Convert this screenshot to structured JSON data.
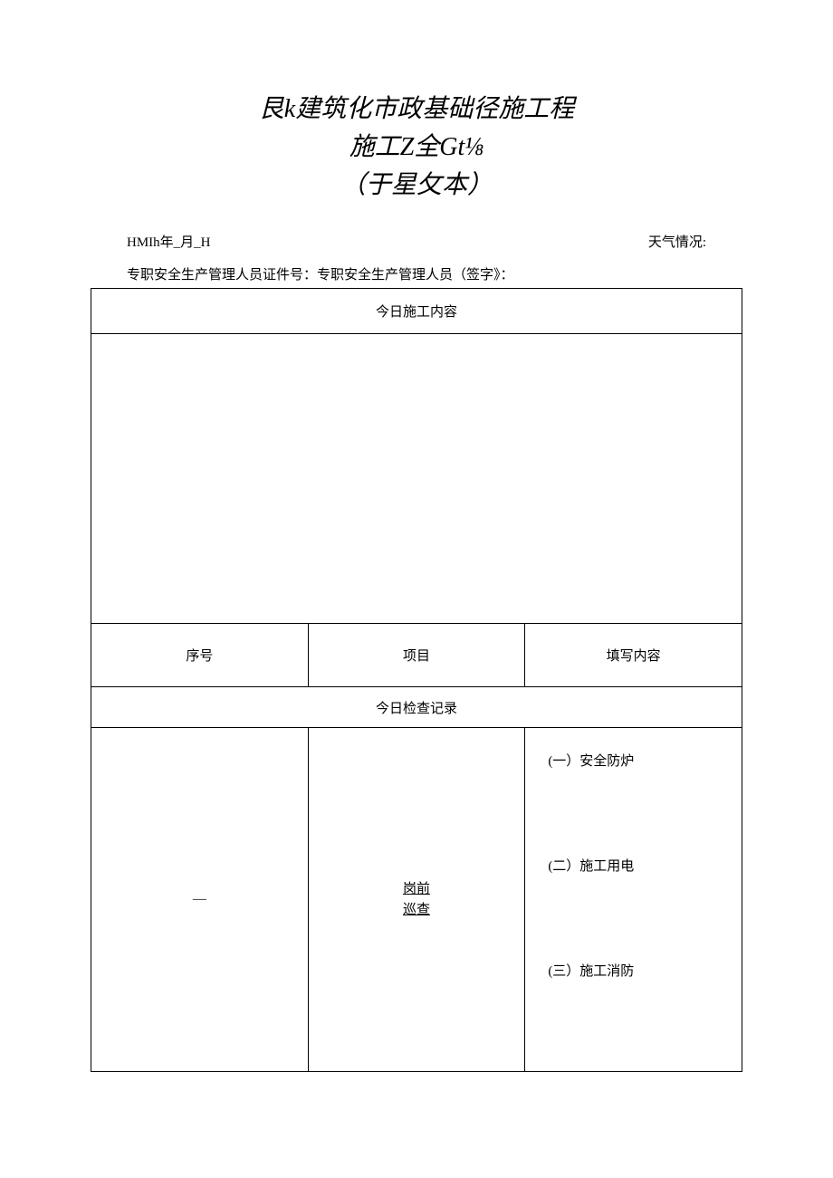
{
  "title": {
    "line1": "艮k建筑化市政基础径施工程",
    "line2": "施工Z全Gt⅛",
    "line3": "（于星攵本）"
  },
  "meta": {
    "date_label": "HMIh年_月_H",
    "weather_label": "天气情况:"
  },
  "signature_line": "专职安全生产管理人员证件号：专职安全生产管理人员（签字》：",
  "table": {
    "header_today_construction": "今日施工内容",
    "columns": {
      "seq": "序号",
      "item": "项目",
      "content": "填写内容"
    },
    "section_header": "今日检查记录",
    "row1": {
      "seq": "—",
      "item_line1": "岗前",
      "item_line2": "巡查",
      "content_items": [
        "(一）安全防炉",
        "(二）施工用电",
        "(三）施工消防"
      ]
    }
  },
  "style": {
    "page_bg": "#ffffff",
    "text_color": "#000000",
    "border_color": "#000000",
    "title_fontsize": 28,
    "body_fontsize": 15
  }
}
